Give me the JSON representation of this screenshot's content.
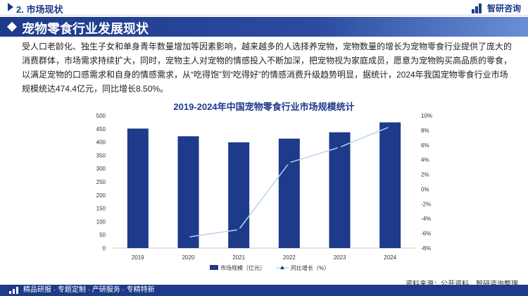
{
  "header": {
    "section_title": "2. 市场现状",
    "brand_name": "智研咨询"
  },
  "banner": {
    "title": "宠物零食行业发展现状"
  },
  "paragraph": "受人口老龄化、独生子女和单身青年数量增加等因素影响，越来越多的人选择养宠物，宠物数量的增长为宠物零食行业提供了庞大的消费群体，市场需求持续扩大，同时，宠物主人对宠物的情感投入不断加深，把宠物视为家庭成员，愿意为宠物购买高品质的零食，以满足宠物的口感需求和自身的情感需求，从“吃得饱”到“吃得好”的情感消费升级趋势明显，据统计，2024年我国宠物零食行业市场规模统达474.4亿元，同比增长8.50%。",
  "chart_data": {
    "type": "bar",
    "title": "2019-2024年中国宠物零食行业市场规模统计",
    "categories": [
      "2019",
      "2020",
      "2021",
      "2022",
      "2023",
      "2024"
    ],
    "series": [
      {
        "name": "市场规模（亿元）",
        "type": "bar",
        "axis": "left",
        "color": "#1e3a8a",
        "values": [
          451,
          422,
          399,
          413,
          437,
          474.4
        ]
      },
      {
        "name": "同比增长（%）",
        "type": "line",
        "axis": "right",
        "color": "#b9d3ec",
        "values": [
          null,
          -6.5,
          -5.5,
          3.6,
          5.7,
          8.5
        ]
      }
    ],
    "left_axis": {
      "ylim": [
        0,
        500
      ],
      "ticks": [
        "0",
        "50",
        "100",
        "150",
        "200",
        "250",
        "300",
        "350",
        "400",
        "450",
        "500"
      ]
    },
    "right_axis": {
      "ylim": [
        -8,
        10
      ],
      "ticks": [
        "-8%",
        "-6%",
        "-4%",
        "-2%",
        "0%",
        "2%",
        "4%",
        "6%",
        "8%",
        "10%"
      ]
    },
    "legend_position": "bottom-center",
    "grid": false
  },
  "footer": {
    "left_text": "精品研报 · 专题定制 · 产研服务 · 专精特新",
    "source": "资料来源：公开资料、智研咨询整理"
  }
}
